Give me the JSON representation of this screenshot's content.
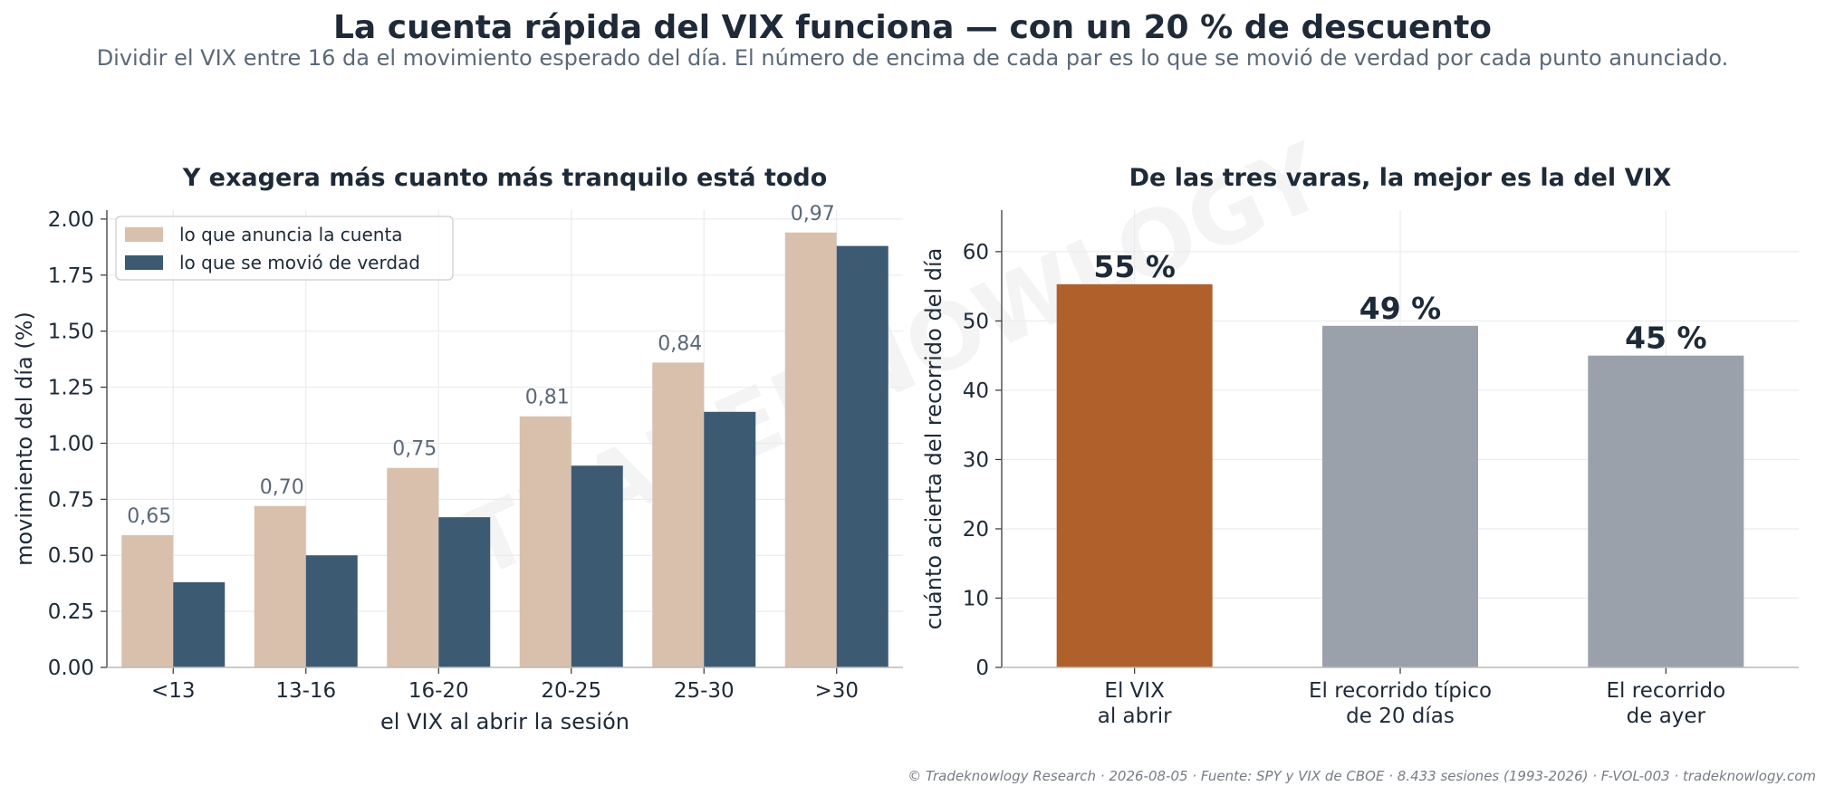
{
  "title": "La cuenta rápida del VIX funciona — con un 20 % de descuento",
  "subtitle": "Dividir el VIX entre 16 da el movimiento esperado del día. El número de encima de cada par es lo que se movió de verdad por cada punto anunciado.",
  "watermark": "TRADEKNOWLOGY",
  "footer": "© Tradeknowlogy Research   ·   2026-08-05   ·   Fuente: SPY y VIX de CBOE · 8.433 sesiones (1993-2026) · F-VOL-003   ·   tradeknowlogy.com",
  "colors": {
    "announced": "#d9c0ad",
    "actual": "#3d5a73",
    "highlight": "#b0612b",
    "muted": "#9ba1ab",
    "grid": "#e9ecef",
    "text": "#1e2a38",
    "ratio_text": "#5a6878"
  },
  "chart_data": [
    {
      "type": "bar",
      "title": "Y exagera más cuanto más tranquilo está todo",
      "xlabel": "el VIX al abrir la sesión",
      "ylabel": "movimiento del día (%)",
      "categories": [
        "<13",
        "13-16",
        "16-20",
        "20-25",
        "25-30",
        ">30"
      ],
      "series": [
        {
          "name": "lo que anuncia la cuenta",
          "values": [
            0.59,
            0.72,
            0.89,
            1.12,
            1.36,
            1.94
          ]
        },
        {
          "name": "lo que se movió de verdad",
          "values": [
            0.38,
            0.5,
            0.67,
            0.9,
            1.14,
            1.88
          ]
        }
      ],
      "annotations": [
        "0,65",
        "0,70",
        "0,75",
        "0,81",
        "0,84",
        "0,97"
      ],
      "ylim": [
        0,
        2.04
      ],
      "yticks": [
        "0.00",
        "0.25",
        "0.50",
        "0.75",
        "1.00",
        "1.25",
        "1.50",
        "1.75",
        "2.00"
      ],
      "grid": true,
      "legend": "top-left"
    },
    {
      "type": "bar",
      "title": "De las tres varas, la mejor es la del VIX",
      "xlabel": "",
      "ylabel": "cuánto acierta del recorrido del día",
      "categories": [
        [
          "El VIX",
          "al abrir"
        ],
        [
          "El recorrido típico",
          "de 20 días"
        ],
        [
          "El recorrido",
          "de ayer"
        ]
      ],
      "values": [
        55.3,
        49.3,
        45.0
      ],
      "labels": [
        "55 %",
        "49 %",
        "45 %"
      ],
      "ylim": [
        0,
        66
      ],
      "yticks": [
        "0",
        "10",
        "20",
        "30",
        "40",
        "50",
        "60"
      ],
      "grid": true
    }
  ]
}
